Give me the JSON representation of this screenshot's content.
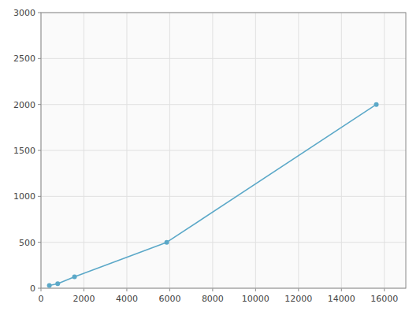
{
  "chart_data": {
    "type": "line",
    "x": [
      390,
      780,
      1563,
      5859,
      15625
    ],
    "values": [
      30,
      50,
      125,
      500,
      2000
    ],
    "color": "#5BA8C8",
    "marker": "circle",
    "xlim": [
      0,
      17000
    ],
    "ylim": [
      0,
      3000
    ],
    "xticks": [
      0,
      2000,
      4000,
      6000,
      8000,
      10000,
      12000,
      14000,
      16000
    ],
    "yticks": [
      0,
      500,
      1000,
      1500,
      2000,
      2500,
      3000
    ],
    "grid": true
  }
}
